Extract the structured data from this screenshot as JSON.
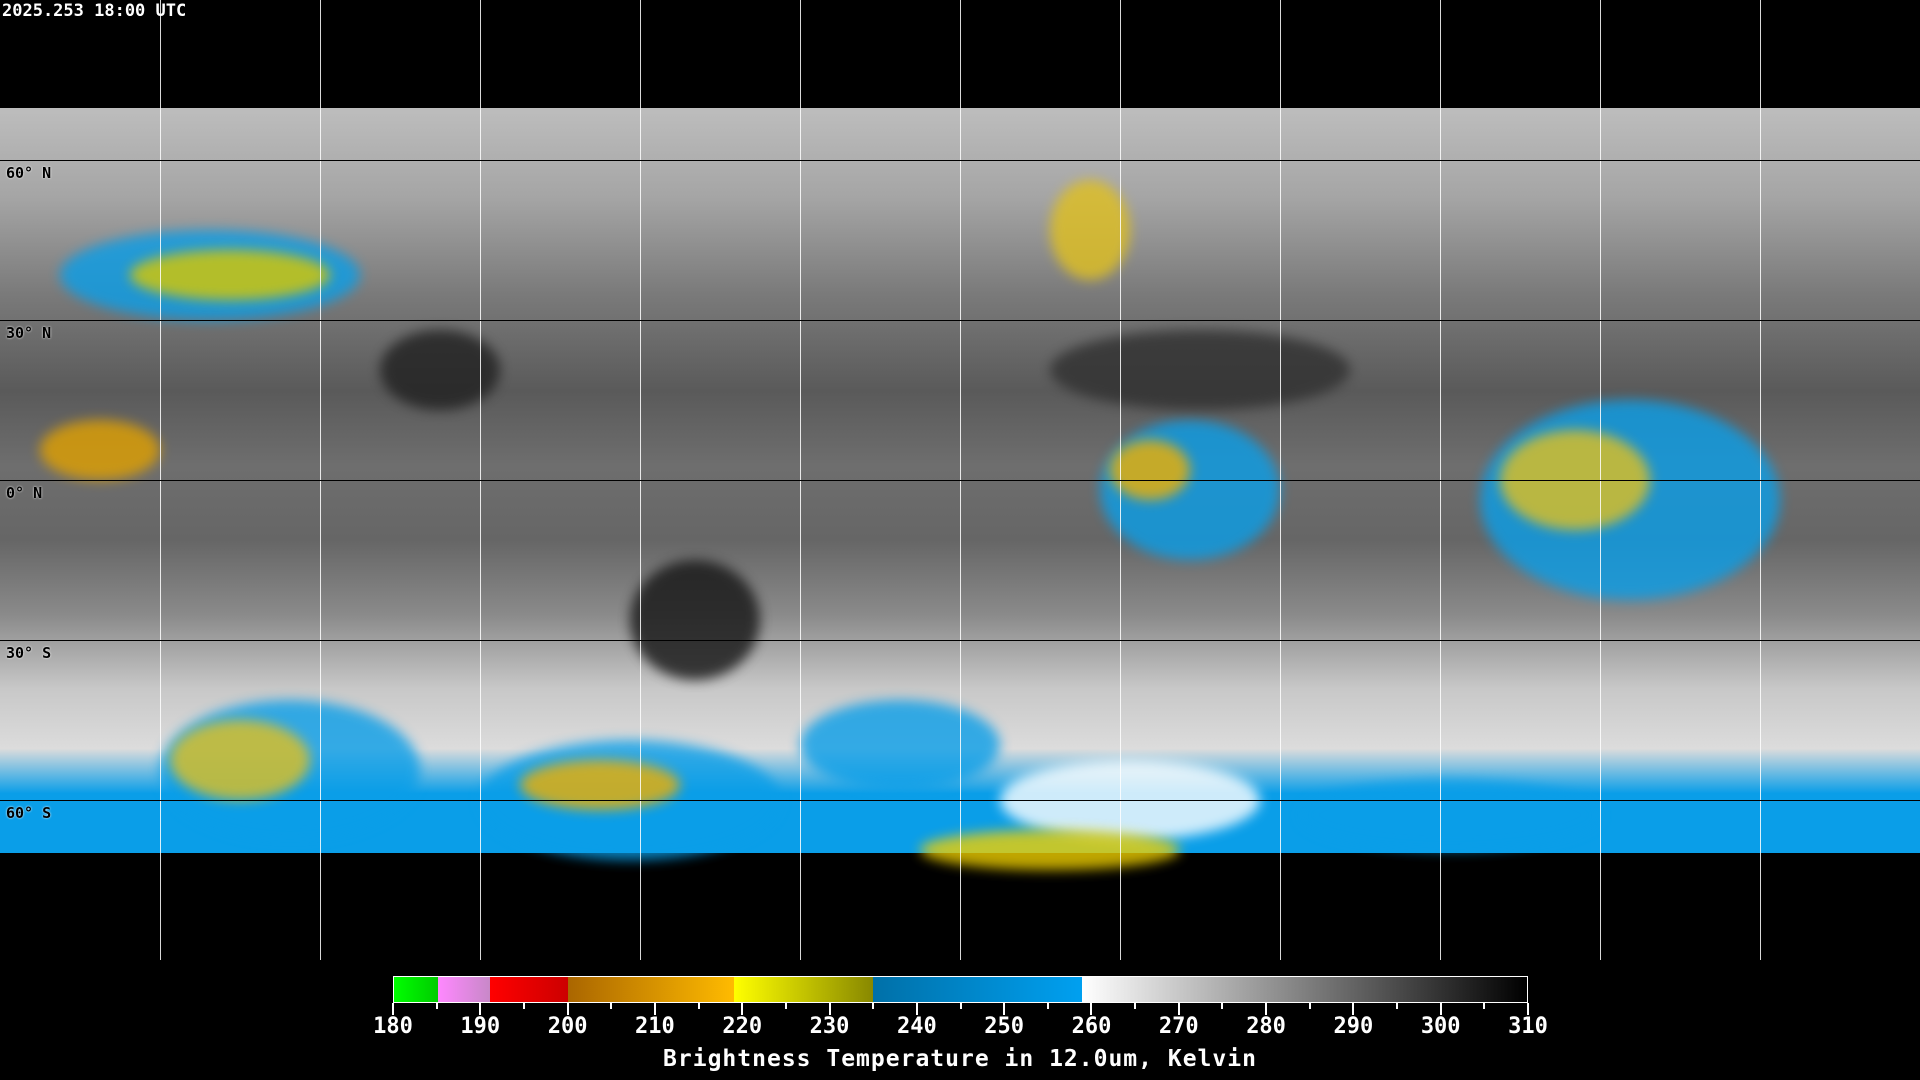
{
  "timestamp": "2025.253 18:00 UTC",
  "map": {
    "projection": "equirectangular",
    "grid_spacing_deg": 30,
    "lat_labels": [
      "60° N",
      "30° N",
      "0° N",
      "30° S",
      "60° S"
    ],
    "lat_values": [
      60,
      30,
      0,
      -30,
      -60
    ],
    "lon_values": [
      -150,
      -120,
      -90,
      -60,
      -30,
      0,
      30,
      60,
      90,
      120,
      150
    ]
  },
  "colorbar": {
    "title": "Brightness Temperature in 12.0um, Kelvin",
    "range": [
      180,
      310
    ],
    "tick_labels": [
      "180",
      "190",
      "200",
      "210",
      "220",
      "230",
      "240",
      "250",
      "260",
      "270",
      "280",
      "290",
      "300",
      "310"
    ],
    "segments": [
      {
        "from": 180,
        "to": 185,
        "colors": [
          "#00ff00",
          "#00cc00"
        ]
      },
      {
        "from": 185,
        "to": 191,
        "colors": [
          "#ff88ff",
          "#c888c8"
        ]
      },
      {
        "from": 191,
        "to": 200,
        "colors": [
          "#ff0000",
          "#cc0000"
        ]
      },
      {
        "from": 200,
        "to": 219,
        "colors": [
          "#aa6600",
          "#ffbb00"
        ]
      },
      {
        "from": 219,
        "to": 235,
        "colors": [
          "#ffff00",
          "#888800"
        ]
      },
      {
        "from": 235,
        "to": 259,
        "colors": [
          "#0070a8",
          "#00a0f0"
        ]
      },
      {
        "from": 259,
        "to": 310,
        "colors": [
          "#ffffff",
          "#000000"
        ]
      }
    ]
  }
}
